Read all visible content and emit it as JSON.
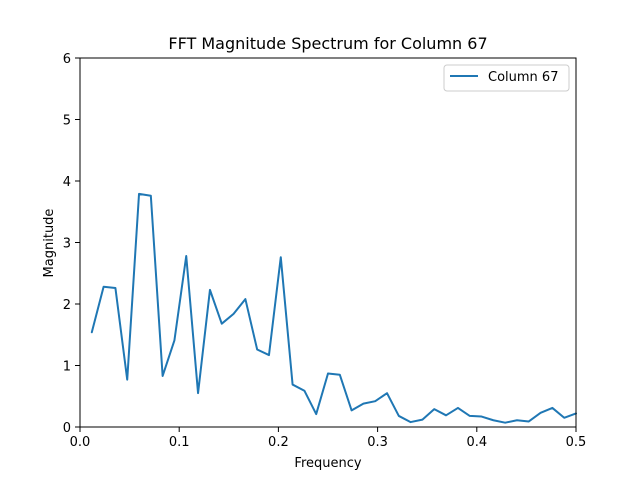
{
  "chart_data": {
    "type": "line",
    "title": "FFT Magnitude Spectrum for Column 67",
    "xlabel": "Frequency",
    "ylabel": "Magnitude",
    "xlim": [
      0.0,
      0.5
    ],
    "ylim": [
      0,
      6
    ],
    "x_ticks": [
      "0.0",
      "0.1",
      "0.2",
      "0.3",
      "0.4",
      "0.5"
    ],
    "y_ticks": [
      "0",
      "1",
      "2",
      "3",
      "4",
      "5",
      "6"
    ],
    "grid": false,
    "legend_position": "top-right",
    "series": [
      {
        "name": "Column 67",
        "color": "#1f77b4",
        "x": [
          0.0119,
          0.0238,
          0.0357,
          0.0476,
          0.0595,
          0.0714,
          0.0833,
          0.0952,
          0.1071,
          0.119,
          0.131,
          0.1429,
          0.1548,
          0.1667,
          0.1786,
          0.1905,
          0.2024,
          0.2143,
          0.2262,
          0.2381,
          0.25,
          0.2619,
          0.2738,
          0.2857,
          0.2976,
          0.3095,
          0.3214,
          0.3333,
          0.3452,
          0.3571,
          0.369,
          0.381,
          0.3929,
          0.4048,
          0.4167,
          0.4286,
          0.4405,
          0.4524,
          0.4643,
          0.4762,
          0.4881,
          0.5
        ],
        "y": [
          1.54,
          2.28,
          2.26,
          0.77,
          3.79,
          3.76,
          0.83,
          1.41,
          2.78,
          0.55,
          2.23,
          1.68,
          1.84,
          2.08,
          1.26,
          1.17,
          2.76,
          0.69,
          0.59,
          0.21,
          0.87,
          0.85,
          0.27,
          0.38,
          0.42,
          0.55,
          0.18,
          0.08,
          0.12,
          0.29,
          0.19,
          0.31,
          0.18,
          0.17,
          0.11,
          0.07,
          0.11,
          0.09,
          0.23,
          0.31,
          0.15,
          0.22
        ]
      }
    ]
  }
}
